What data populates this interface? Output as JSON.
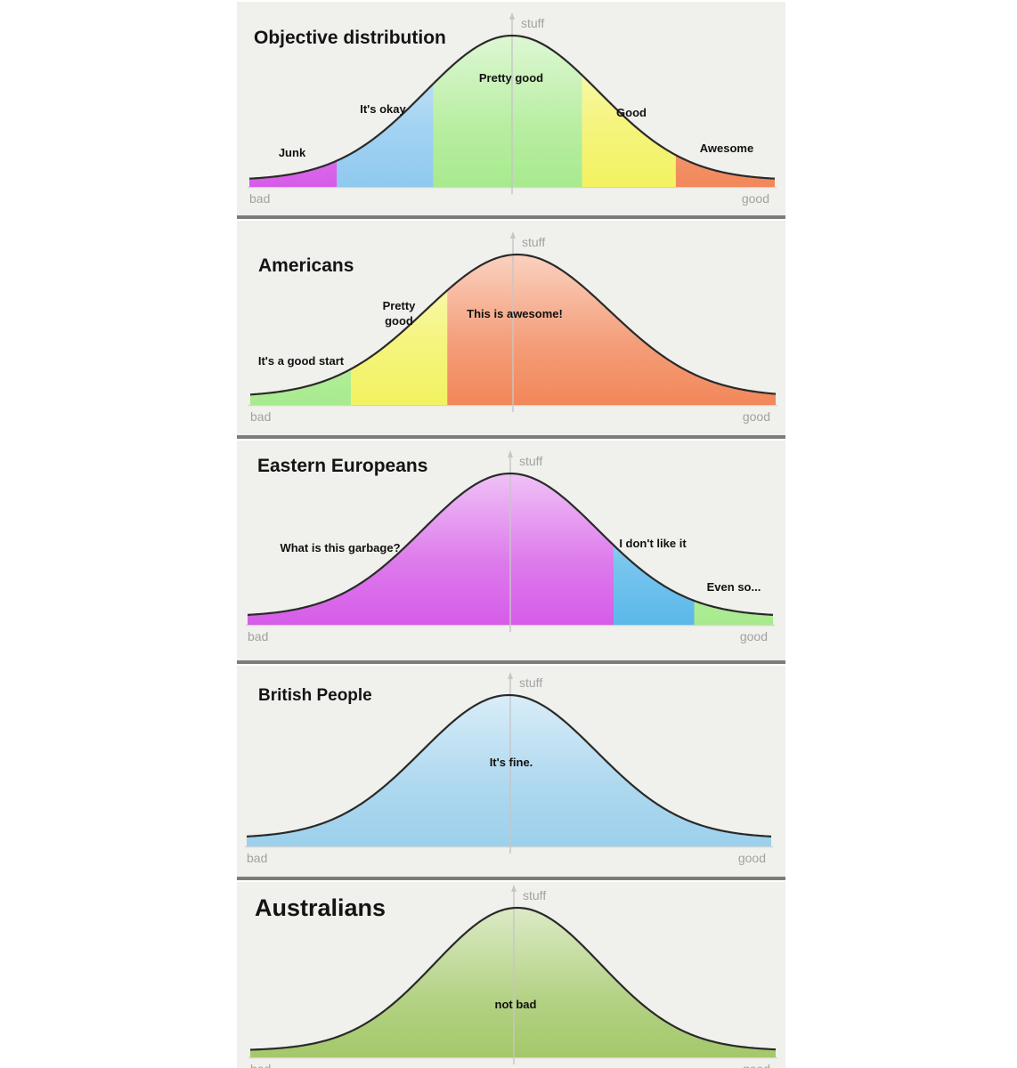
{
  "chart_data": [
    {
      "type": "area",
      "title": "Objective distribution",
      "ylabel": "stuff",
      "x_left_label": "bad",
      "x_right_label": "good",
      "xlim": [
        -3,
        3
      ],
      "peak_x": 0,
      "segments": [
        {
          "label": "Junk",
          "from": -3.0,
          "to": -2.0,
          "color": "#d65ce8"
        },
        {
          "label": "It's okay",
          "from": -2.0,
          "to": -0.9,
          "color": "#8fc9ef"
        },
        {
          "label": "Pretty good",
          "from": -0.9,
          "to": 0.8,
          "color": "#a8ea8e"
        },
        {
          "label": "Good",
          "from": 0.8,
          "to": 1.87,
          "color": "#f3f261"
        },
        {
          "label": "Awesome",
          "from": 1.87,
          "to": 3.0,
          "color": "#f2875a"
        }
      ]
    },
    {
      "type": "area",
      "title": "Americans",
      "ylabel": "stuff",
      "x_left_label": "bad",
      "x_right_label": "good",
      "xlim": [
        -3,
        3
      ],
      "peak_x": 0.05,
      "segments": [
        {
          "label": "It's a good start",
          "from": -3.0,
          "to": -1.85,
          "color": "#a8ea8e"
        },
        {
          "label": "Pretty good",
          "from": -1.85,
          "to": -0.75,
          "color": "#f3f261"
        },
        {
          "label": "This is awesome!",
          "from": -0.75,
          "to": 3.0,
          "color": "#f2875a"
        }
      ]
    },
    {
      "type": "area",
      "title": "Eastern Europeans",
      "ylabel": "stuff",
      "x_left_label": "bad",
      "x_right_label": "good",
      "xlim": [
        -3,
        3
      ],
      "peak_x": 0,
      "segments": [
        {
          "label": "What is this garbage?",
          "from": -3.0,
          "to": 1.18,
          "color": "#d65ce8"
        },
        {
          "label": "I don't like it",
          "from": 1.18,
          "to": 2.1,
          "color": "#5ab8ea"
        },
        {
          "label": "Even so...",
          "from": 2.1,
          "to": 3.0,
          "color": "#a8ea8e"
        }
      ]
    },
    {
      "type": "area",
      "title": "British People",
      "ylabel": "stuff",
      "x_left_label": "bad",
      "x_right_label": "good",
      "xlim": [
        -3,
        3
      ],
      "peak_x": 0,
      "segments": [
        {
          "label": "It's fine.",
          "from": -3.0,
          "to": 3.0,
          "color": "#9cd0ec"
        }
      ]
    },
    {
      "type": "area",
      "title": "Australians",
      "ylabel": "stuff",
      "x_left_label": "bad",
      "x_right_label": "good",
      "xlim": [
        -3,
        3
      ],
      "peak_x": 0.05,
      "segments": [
        {
          "label": "not bad",
          "from": -3.0,
          "to": 3.0,
          "color": "#a4c86a"
        }
      ]
    }
  ]
}
